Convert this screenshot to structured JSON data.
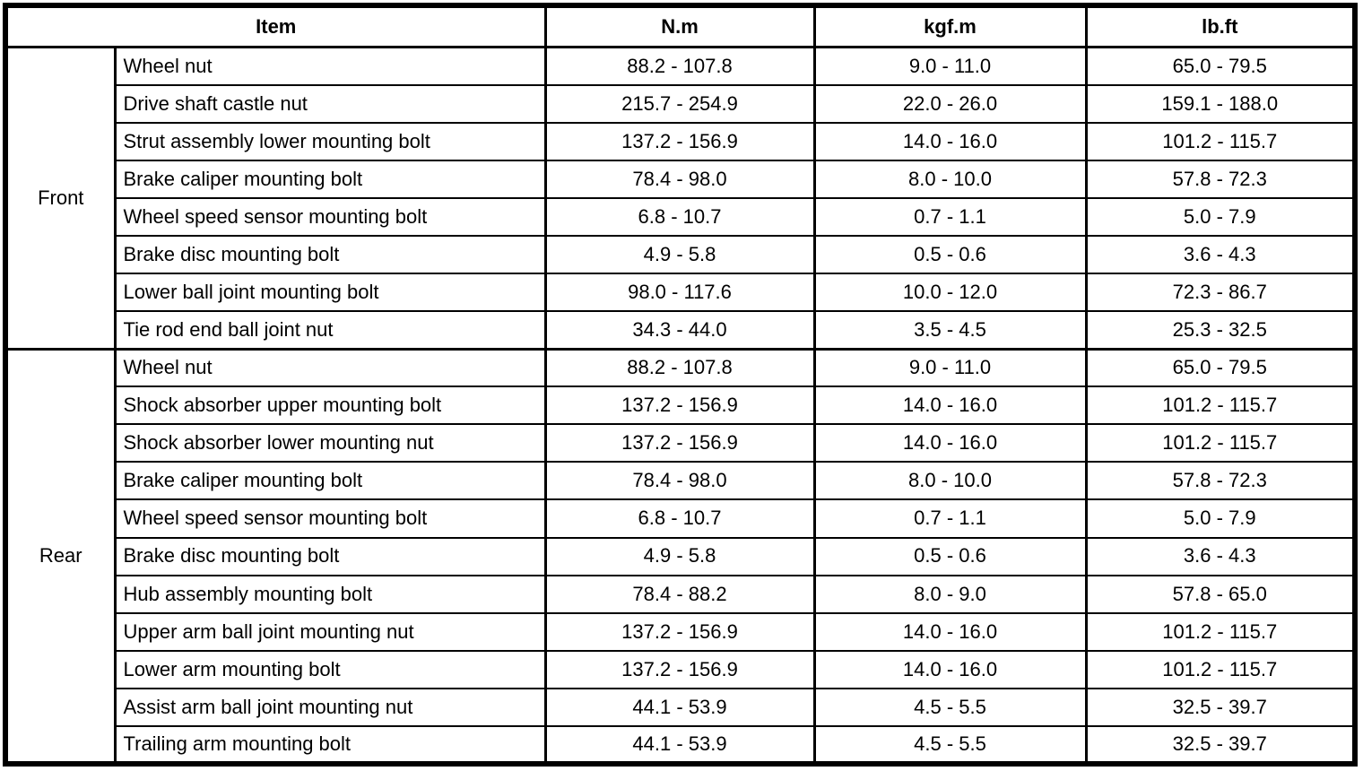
{
  "page": {
    "background_color": "#ffffff",
    "line_color": "#000000"
  },
  "table": {
    "headers": {
      "item": "Item",
      "nm": "N.m",
      "kgfm": "kgf.m",
      "lbft": "lb.ft"
    },
    "sections": [
      {
        "label": "Front",
        "rows": [
          {
            "item": "Wheel nut",
            "nm": "88.2 - 107.8",
            "kgfm": "9.0 - 11.0",
            "lbft": "65.0 - 79.5"
          },
          {
            "item": "Drive shaft castle nut",
            "nm": "215.7 - 254.9",
            "kgfm": "22.0 - 26.0",
            "lbft": "159.1 - 188.0"
          },
          {
            "item": "Strut assembly lower mounting bolt",
            "nm": "137.2 - 156.9",
            "kgfm": "14.0 - 16.0",
            "lbft": "101.2 - 115.7"
          },
          {
            "item": "Brake caliper mounting bolt",
            "nm": "78.4 - 98.0",
            "kgfm": "8.0 - 10.0",
            "lbft": "57.8 - 72.3"
          },
          {
            "item": "Wheel speed sensor mounting bolt",
            "nm": "6.8 - 10.7",
            "kgfm": "0.7 - 1.1",
            "lbft": "5.0 - 7.9"
          },
          {
            "item": "Brake disc mounting bolt",
            "nm": "4.9 - 5.8",
            "kgfm": "0.5 - 0.6",
            "lbft": "3.6 - 4.3"
          },
          {
            "item": "Lower ball joint mounting bolt",
            "nm": "98.0 - 117.6",
            "kgfm": "10.0 - 12.0",
            "lbft": "72.3 - 86.7"
          },
          {
            "item": "Tie rod end ball joint nut",
            "nm": "34.3 - 44.0",
            "kgfm": "3.5 - 4.5",
            "lbft": "25.3 - 32.5"
          }
        ]
      },
      {
        "label": "Rear",
        "rows": [
          {
            "item": "Wheel nut",
            "nm": "88.2 - 107.8",
            "kgfm": "9.0 - 11.0",
            "lbft": "65.0 - 79.5"
          },
          {
            "item": "Shock absorber upper mounting bolt",
            "nm": "137.2 - 156.9",
            "kgfm": "14.0 - 16.0",
            "lbft": "101.2 - 115.7"
          },
          {
            "item": "Shock absorber lower mounting nut",
            "nm": "137.2 - 156.9",
            "kgfm": "14.0 - 16.0",
            "lbft": "101.2 - 115.7"
          },
          {
            "item": "Brake caliper mounting bolt",
            "nm": "78.4 - 98.0",
            "kgfm": "8.0 - 10.0",
            "lbft": "57.8 - 72.3"
          },
          {
            "item": "Wheel speed sensor mounting bolt",
            "nm": "6.8 - 10.7",
            "kgfm": "0.7 - 1.1",
            "lbft": "5.0 - 7.9"
          },
          {
            "item": "Brake disc mounting bolt",
            "nm": "4.9 - 5.8",
            "kgfm": "0.5 - 0.6",
            "lbft": "3.6 - 4.3"
          },
          {
            "item": "Hub assembly mounting bolt",
            "nm": "78.4 - 88.2",
            "kgfm": "8.0 - 9.0",
            "lbft": "57.8 - 65.0"
          },
          {
            "item": "Upper arm ball joint mounting nut",
            "nm": "137.2 - 156.9",
            "kgfm": "14.0 - 16.0",
            "lbft": "101.2 - 115.7"
          },
          {
            "item": "Lower arm mounting bolt",
            "nm": "137.2 - 156.9",
            "kgfm": "14.0 - 16.0",
            "lbft": "101.2 - 115.7"
          },
          {
            "item": "Assist arm ball joint mounting nut",
            "nm": "44.1 - 53.9",
            "kgfm": "4.5 - 5.5",
            "lbft": "32.5 - 39.7"
          },
          {
            "item": "Trailing arm mounting bolt",
            "nm": "44.1 - 53.9",
            "kgfm": "4.5 - 5.5",
            "lbft": "32.5 - 39.7"
          }
        ]
      }
    ]
  }
}
